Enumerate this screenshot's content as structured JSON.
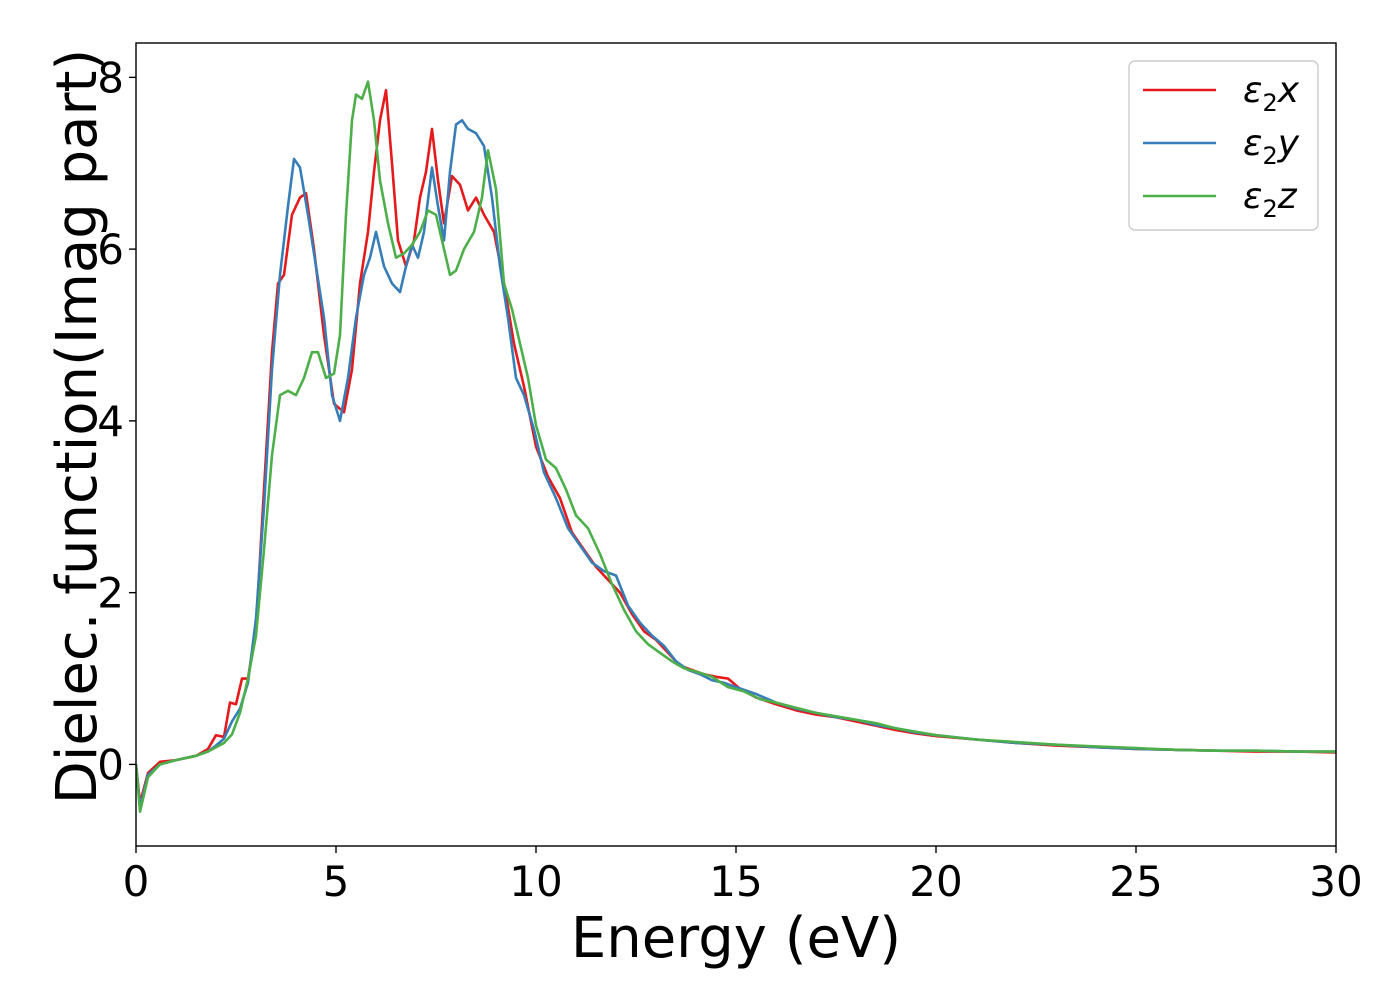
{
  "chart_data": {
    "type": "line",
    "xlabel": "Energy (eV)",
    "ylabel": "Dielec. function(Imag part)",
    "xlim": [
      0,
      30
    ],
    "ylim": [
      -0.95,
      8.4
    ],
    "x_ticks": [
      "0",
      "5",
      "10",
      "15",
      "20",
      "25",
      "30"
    ],
    "y_ticks": [
      "0",
      "2",
      "4",
      "6",
      "8"
    ],
    "grid": false,
    "legend_position": "top-right",
    "series": [
      {
        "name": "ε₂x",
        "legend_main": "ε",
        "legend_sub": "2",
        "legend_tail": "x",
        "color": "#e41a1c",
        "points": [
          [
            0,
            0
          ],
          [
            0.1,
            -0.45
          ],
          [
            0.3,
            -0.1
          ],
          [
            0.6,
            0.03
          ],
          [
            1.0,
            0.05
          ],
          [
            1.5,
            0.1
          ],
          [
            1.8,
            0.18
          ],
          [
            2.0,
            0.34
          ],
          [
            2.2,
            0.32
          ],
          [
            2.35,
            0.72
          ],
          [
            2.5,
            0.7
          ],
          [
            2.65,
            1.0
          ],
          [
            2.8,
            1.0
          ],
          [
            3.0,
            1.6
          ],
          [
            3.2,
            3.2
          ],
          [
            3.4,
            4.8
          ],
          [
            3.55,
            5.6
          ],
          [
            3.7,
            5.7
          ],
          [
            3.9,
            6.4
          ],
          [
            4.1,
            6.6
          ],
          [
            4.25,
            6.65
          ],
          [
            4.45,
            6.0
          ],
          [
            4.7,
            5.0
          ],
          [
            4.95,
            4.2
          ],
          [
            5.2,
            4.1
          ],
          [
            5.4,
            4.6
          ],
          [
            5.6,
            5.6
          ],
          [
            5.8,
            6.2
          ],
          [
            5.95,
            6.9
          ],
          [
            6.1,
            7.5
          ],
          [
            6.25,
            7.85
          ],
          [
            6.4,
            7.0
          ],
          [
            6.55,
            6.1
          ],
          [
            6.75,
            5.8
          ],
          [
            6.95,
            6.1
          ],
          [
            7.1,
            6.6
          ],
          [
            7.25,
            6.9
          ],
          [
            7.4,
            7.4
          ],
          [
            7.55,
            6.8
          ],
          [
            7.7,
            6.3
          ],
          [
            7.9,
            6.85
          ],
          [
            8.1,
            6.75
          ],
          [
            8.3,
            6.45
          ],
          [
            8.5,
            6.6
          ],
          [
            8.7,
            6.4
          ],
          [
            8.95,
            6.2
          ],
          [
            9.2,
            5.6
          ],
          [
            9.45,
            4.9
          ],
          [
            9.7,
            4.4
          ],
          [
            10.0,
            3.7
          ],
          [
            10.3,
            3.35
          ],
          [
            10.6,
            3.1
          ],
          [
            10.9,
            2.7
          ],
          [
            11.2,
            2.5
          ],
          [
            11.5,
            2.3
          ],
          [
            11.8,
            2.15
          ],
          [
            12.1,
            2.0
          ],
          [
            12.4,
            1.75
          ],
          [
            12.7,
            1.55
          ],
          [
            13.0,
            1.45
          ],
          [
            13.3,
            1.3
          ],
          [
            13.6,
            1.15
          ],
          [
            13.9,
            1.1
          ],
          [
            14.2,
            1.05
          ],
          [
            14.5,
            1.02
          ],
          [
            14.8,
            1.0
          ],
          [
            15.1,
            0.88
          ],
          [
            15.5,
            0.78
          ],
          [
            16.0,
            0.7
          ],
          [
            16.5,
            0.63
          ],
          [
            17.0,
            0.58
          ],
          [
            17.5,
            0.55
          ],
          [
            18.0,
            0.5
          ],
          [
            18.5,
            0.45
          ],
          [
            19.0,
            0.4
          ],
          [
            19.5,
            0.36
          ],
          [
            20.0,
            0.33
          ],
          [
            21.0,
            0.29
          ],
          [
            22.0,
            0.25
          ],
          [
            23.0,
            0.22
          ],
          [
            24.0,
            0.2
          ],
          [
            25.0,
            0.18
          ],
          [
            26.0,
            0.17
          ],
          [
            27.0,
            0.16
          ],
          [
            28.0,
            0.15
          ],
          [
            29.0,
            0.15
          ],
          [
            30.0,
            0.14
          ]
        ]
      },
      {
        "name": "ε₂y",
        "legend_main": "ε",
        "legend_sub": "2",
        "legend_tail": "y",
        "color": "#377eb8",
        "points": [
          [
            0,
            0
          ],
          [
            0.1,
            -0.5
          ],
          [
            0.3,
            -0.12
          ],
          [
            0.6,
            0.0
          ],
          [
            1.0,
            0.05
          ],
          [
            1.5,
            0.1
          ],
          [
            1.8,
            0.15
          ],
          [
            2.0,
            0.22
          ],
          [
            2.2,
            0.3
          ],
          [
            2.4,
            0.5
          ],
          [
            2.6,
            0.65
          ],
          [
            2.8,
            0.95
          ],
          [
            3.0,
            1.7
          ],
          [
            3.2,
            3.0
          ],
          [
            3.4,
            4.6
          ],
          [
            3.6,
            5.7
          ],
          [
            3.8,
            6.5
          ],
          [
            3.95,
            7.05
          ],
          [
            4.1,
            6.95
          ],
          [
            4.3,
            6.4
          ],
          [
            4.5,
            5.8
          ],
          [
            4.7,
            5.2
          ],
          [
            4.9,
            4.3
          ],
          [
            5.1,
            4.0
          ],
          [
            5.3,
            4.5
          ],
          [
            5.5,
            5.2
          ],
          [
            5.7,
            5.7
          ],
          [
            5.85,
            5.9
          ],
          [
            6.0,
            6.2
          ],
          [
            6.2,
            5.8
          ],
          [
            6.4,
            5.6
          ],
          [
            6.6,
            5.5
          ],
          [
            6.75,
            5.8
          ],
          [
            6.9,
            6.05
          ],
          [
            7.05,
            5.9
          ],
          [
            7.2,
            6.2
          ],
          [
            7.4,
            6.95
          ],
          [
            7.55,
            6.5
          ],
          [
            7.7,
            6.1
          ],
          [
            7.85,
            6.9
          ],
          [
            8.0,
            7.45
          ],
          [
            8.15,
            7.5
          ],
          [
            8.3,
            7.4
          ],
          [
            8.5,
            7.35
          ],
          [
            8.7,
            7.2
          ],
          [
            8.9,
            6.6
          ],
          [
            9.1,
            5.8
          ],
          [
            9.3,
            5.2
          ],
          [
            9.5,
            4.5
          ],
          [
            9.7,
            4.3
          ],
          [
            9.95,
            3.9
          ],
          [
            10.2,
            3.4
          ],
          [
            10.5,
            3.1
          ],
          [
            10.8,
            2.75
          ],
          [
            11.1,
            2.55
          ],
          [
            11.4,
            2.35
          ],
          [
            11.7,
            2.25
          ],
          [
            12.0,
            2.2
          ],
          [
            12.3,
            1.85
          ],
          [
            12.6,
            1.65
          ],
          [
            12.9,
            1.5
          ],
          [
            13.2,
            1.38
          ],
          [
            13.5,
            1.2
          ],
          [
            13.8,
            1.1
          ],
          [
            14.1,
            1.05
          ],
          [
            14.4,
            0.98
          ],
          [
            14.7,
            0.95
          ],
          [
            15.0,
            0.9
          ],
          [
            15.5,
            0.82
          ],
          [
            16.0,
            0.72
          ],
          [
            16.5,
            0.65
          ],
          [
            17.0,
            0.6
          ],
          [
            17.5,
            0.55
          ],
          [
            18.0,
            0.52
          ],
          [
            18.5,
            0.46
          ],
          [
            19.0,
            0.42
          ],
          [
            19.5,
            0.37
          ],
          [
            20.0,
            0.34
          ],
          [
            21.0,
            0.29
          ],
          [
            22.0,
            0.25
          ],
          [
            23.0,
            0.23
          ],
          [
            24.0,
            0.2
          ],
          [
            25.0,
            0.18
          ],
          [
            26.0,
            0.17
          ],
          [
            27.0,
            0.16
          ],
          [
            28.0,
            0.16
          ],
          [
            29.0,
            0.15
          ],
          [
            30.0,
            0.15
          ]
        ]
      },
      {
        "name": "ε₂z",
        "legend_main": "ε",
        "legend_sub": "2",
        "legend_tail": "z",
        "color": "#4daf4a",
        "points": [
          [
            0,
            0
          ],
          [
            0.1,
            -0.55
          ],
          [
            0.3,
            -0.15
          ],
          [
            0.6,
            0.0
          ],
          [
            1.0,
            0.05
          ],
          [
            1.5,
            0.1
          ],
          [
            1.8,
            0.15
          ],
          [
            2.0,
            0.2
          ],
          [
            2.2,
            0.25
          ],
          [
            2.4,
            0.35
          ],
          [
            2.6,
            0.6
          ],
          [
            2.8,
            1.0
          ],
          [
            3.0,
            1.5
          ],
          [
            3.2,
            2.5
          ],
          [
            3.4,
            3.6
          ],
          [
            3.6,
            4.3
          ],
          [
            3.8,
            4.35
          ],
          [
            4.0,
            4.3
          ],
          [
            4.2,
            4.5
          ],
          [
            4.4,
            4.8
          ],
          [
            4.55,
            4.8
          ],
          [
            4.75,
            4.5
          ],
          [
            4.95,
            4.55
          ],
          [
            5.1,
            5.0
          ],
          [
            5.25,
            6.4
          ],
          [
            5.4,
            7.5
          ],
          [
            5.5,
            7.8
          ],
          [
            5.65,
            7.75
          ],
          [
            5.8,
            7.95
          ],
          [
            5.95,
            7.5
          ],
          [
            6.1,
            6.8
          ],
          [
            6.3,
            6.3
          ],
          [
            6.5,
            5.9
          ],
          [
            6.7,
            5.95
          ],
          [
            6.9,
            6.05
          ],
          [
            7.1,
            6.2
          ],
          [
            7.3,
            6.45
          ],
          [
            7.5,
            6.4
          ],
          [
            7.7,
            6.0
          ],
          [
            7.85,
            5.7
          ],
          [
            8.0,
            5.75
          ],
          [
            8.2,
            6.0
          ],
          [
            8.45,
            6.2
          ],
          [
            8.65,
            6.6
          ],
          [
            8.8,
            7.15
          ],
          [
            9.0,
            6.7
          ],
          [
            9.2,
            5.6
          ],
          [
            9.4,
            5.3
          ],
          [
            9.6,
            4.9
          ],
          [
            9.8,
            4.5
          ],
          [
            10.0,
            3.95
          ],
          [
            10.25,
            3.55
          ],
          [
            10.5,
            3.45
          ],
          [
            10.75,
            3.2
          ],
          [
            11.0,
            2.9
          ],
          [
            11.3,
            2.75
          ],
          [
            11.6,
            2.45
          ],
          [
            11.9,
            2.1
          ],
          [
            12.2,
            1.8
          ],
          [
            12.5,
            1.55
          ],
          [
            12.8,
            1.4
          ],
          [
            13.1,
            1.3
          ],
          [
            13.4,
            1.2
          ],
          [
            13.7,
            1.12
          ],
          [
            14.0,
            1.08
          ],
          [
            14.4,
            1.02
          ],
          [
            14.8,
            0.9
          ],
          [
            15.2,
            0.85
          ],
          [
            15.6,
            0.76
          ],
          [
            16.0,
            0.72
          ],
          [
            16.5,
            0.66
          ],
          [
            17.0,
            0.6
          ],
          [
            17.5,
            0.56
          ],
          [
            18.0,
            0.52
          ],
          [
            18.5,
            0.48
          ],
          [
            19.0,
            0.42
          ],
          [
            19.5,
            0.38
          ],
          [
            20.0,
            0.34
          ],
          [
            21.0,
            0.29
          ],
          [
            22.0,
            0.26
          ],
          [
            23.0,
            0.23
          ],
          [
            24.0,
            0.21
          ],
          [
            25.0,
            0.19
          ],
          [
            26.0,
            0.17
          ],
          [
            27.0,
            0.16
          ],
          [
            28.0,
            0.16
          ],
          [
            29.0,
            0.15
          ],
          [
            30.0,
            0.15
          ]
        ]
      }
    ]
  }
}
